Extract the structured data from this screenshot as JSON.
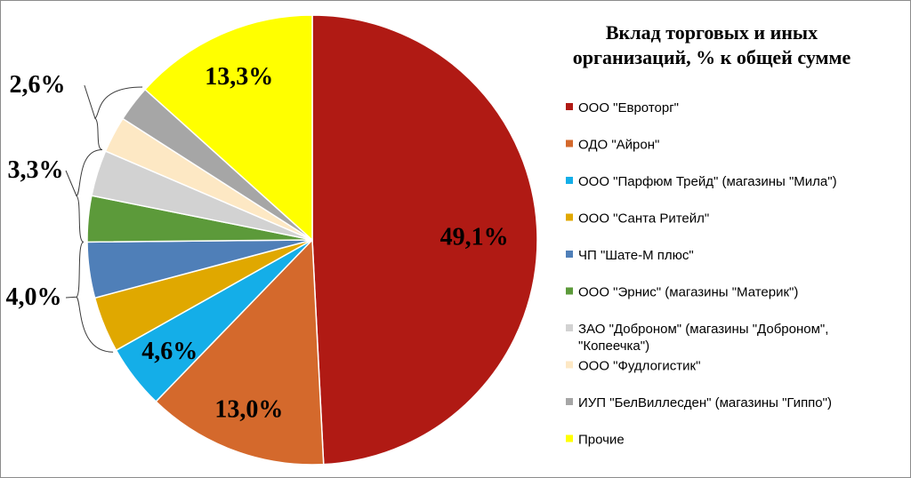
{
  "chart_data": {
    "type": "pie",
    "title": [
      "Вклад торговых и иных",
      "организаций, % к общей сумме"
    ],
    "legend_position": "right",
    "categories": [
      [
        "ООО \"Евроторг\""
      ],
      [
        "ОДО \"Айрон\""
      ],
      [
        "ООО \"Парфюм Трейд\" (магазины \"Мила\")"
      ],
      [
        "ООО \"Санта Ритейл\""
      ],
      [
        "ЧП \"Шате-М плюс\""
      ],
      [
        "ООО \"Эрнис\" (магазины \"Материк\")"
      ],
      [
        "ЗАО \"Доброном\" (магазины \"Доброном\",",
        "\"Копеечка\")"
      ],
      [
        "ООО \"Фудлогистик\""
      ],
      [
        "ИУП \"БелВиллесден\"  (магазины \"Гиппо\")"
      ],
      [
        "Прочие"
      ]
    ],
    "values": [
      49.1,
      13.0,
      4.6,
      4.0,
      4.0,
      3.3,
      3.3,
      2.6,
      2.6,
      13.3
    ],
    "data_labels": [
      "49,1%",
      "13,0%",
      "4,6%",
      "4,0%",
      "",
      "3,3%",
      "",
      "2,6%",
      "",
      "13,3%"
    ],
    "colors": [
      "#b01a14",
      "#d4692c",
      "#14aee8",
      "#e0a800",
      "#4f7fb8",
      "#5c9a3a",
      "#d2d2d2",
      "#fde8c4",
      "#a6a6a6",
      "#ffff00"
    ]
  }
}
